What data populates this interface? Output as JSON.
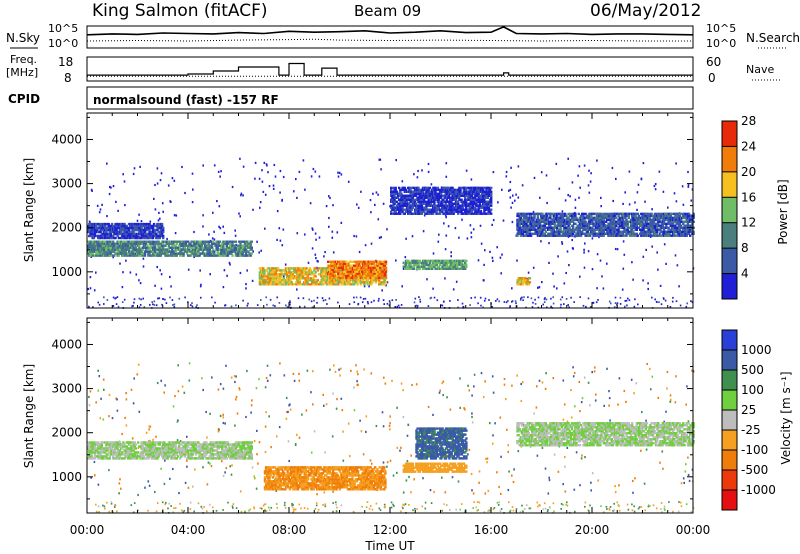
{
  "header": {
    "station": "King Salmon (fitACF)",
    "beam": "Beam 09",
    "date": "06/May/2012"
  },
  "chart_data": [
    {
      "type": "line",
      "panel": "noise",
      "left_label": "N.Sky",
      "right_label": "N.Search",
      "left_ticks": [
        "10^5",
        "10^0"
      ],
      "right_ticks": [
        "10^5",
        "10^0"
      ],
      "series": [
        {
          "name": "N.Sky",
          "x": [
            0,
            1,
            2,
            3,
            4,
            5,
            6,
            7,
            8,
            9,
            10,
            11,
            12,
            13,
            14,
            15,
            16,
            16.5,
            17,
            18,
            19,
            20,
            21,
            22,
            23,
            24
          ],
          "values": [
            3.0,
            3.2,
            3.1,
            3.4,
            3.3,
            3.2,
            3.5,
            3.3,
            3.8,
            3.6,
            3.7,
            3.9,
            3.4,
            3.6,
            3.9,
            3.5,
            3.6,
            4.8,
            3.3,
            3.2,
            3.3,
            3.1,
            3.2,
            3.2,
            3.1,
            3.0
          ]
        },
        {
          "name": "N.Search",
          "x": [
            0,
            2,
            4,
            6,
            8,
            9,
            10,
            12,
            14,
            16,
            18,
            20,
            22,
            24
          ],
          "values": [
            1.6,
            1.7,
            1.6,
            1.8,
            1.9,
            2.0,
            1.8,
            1.7,
            1.8,
            1.7,
            1.6,
            1.7,
            1.6,
            1.6
          ]
        }
      ]
    },
    {
      "type": "line",
      "panel": "frequency",
      "left_label": "Freq.",
      "left_unit": "[MHz]",
      "right_label": "Nave",
      "left_ticks": [
        18,
        8
      ],
      "right_ticks": [
        60,
        0
      ],
      "series": [
        {
          "name": "Freq.",
          "x": [
            0,
            1,
            2,
            3,
            4,
            5,
            6,
            7,
            7.6,
            8,
            8.6,
            9,
            9.3,
            9.9,
            10,
            12,
            14,
            16,
            16.5,
            16.7,
            18,
            20,
            22,
            24
          ],
          "values": [
            10.2,
            10.2,
            10.2,
            10.2,
            10.8,
            12.4,
            14.6,
            14.6,
            10.2,
            16.5,
            10.2,
            10.2,
            14.0,
            10.2,
            10.2,
            10.2,
            10.2,
            10.2,
            11.4,
            10.2,
            10.2,
            10.2,
            10.2,
            10.2
          ]
        },
        {
          "name": "Nave",
          "x": [
            0,
            6,
            12,
            18,
            24
          ],
          "values": [
            12,
            12,
            12,
            12,
            12
          ]
        }
      ]
    },
    {
      "type": "text",
      "panel": "cpid",
      "label": "CPID",
      "text": "normalsound (fast) -157 RF"
    },
    {
      "type": "heatmap",
      "panel": "power",
      "ylabel": "Slant Range [km]",
      "xlim": [
        0,
        24
      ],
      "ylim": [
        180,
        4600
      ],
      "yticks": [
        1000,
        2000,
        3000,
        4000
      ],
      "colorbar": {
        "label": "Power [dB]",
        "ticks": [
          4,
          8,
          12,
          16,
          20,
          24,
          28
        ],
        "colors": [
          "#1f1fd6",
          "#3a5aa8",
          "#4a7f7d",
          "#6fbd66",
          "#f5c020",
          "#f07d0a",
          "#e62a0a"
        ]
      },
      "features": [
        {
          "t0": 0.0,
          "t1": 6.5,
          "r0": 1350,
          "r1": 1700,
          "level": 12
        },
        {
          "t0": 0.0,
          "t1": 3.0,
          "r0": 1750,
          "r1": 2100,
          "level": 6
        },
        {
          "t0": 6.8,
          "t1": 11.8,
          "r0": 700,
          "r1": 1100,
          "level": 20
        },
        {
          "t0": 9.5,
          "t1": 11.8,
          "r0": 850,
          "r1": 1250,
          "level": 24
        },
        {
          "t0": 12.5,
          "t1": 15.0,
          "r0": 1050,
          "r1": 1250,
          "level": 14
        },
        {
          "t0": 12.0,
          "t1": 16.0,
          "r0": 2300,
          "r1": 2900,
          "level": 5
        },
        {
          "t0": 17.0,
          "t1": 17.5,
          "r0": 700,
          "r1": 850,
          "level": 20
        },
        {
          "t0": 17.0,
          "t1": 24.0,
          "r0": 1800,
          "r1": 2300,
          "level": 8
        }
      ]
    },
    {
      "type": "heatmap",
      "panel": "velocity",
      "xlabel": "Time UT",
      "ylabel": "Slant Range [km]",
      "xlim": [
        0,
        24
      ],
      "ylim": [
        180,
        4600
      ],
      "xticks": [
        "00:00",
        "04:00",
        "08:00",
        "12:00",
        "16:00",
        "20:00",
        "00:00"
      ],
      "yticks": [
        1000,
        2000,
        3000,
        4000
      ],
      "colorbar": {
        "label": "Velocity [m s⁻¹]",
        "ticks": [
          1000,
          500,
          100,
          25,
          -25,
          -100,
          -500,
          -1000
        ],
        "colors": [
          "#2a3fd8",
          "#3a5aa8",
          "#3f8f4f",
          "#6fcf3f",
          "#bdbdbd",
          "#f5a020",
          "#f07d0a",
          "#ee3a0a",
          "#e60f0f"
        ]
      },
      "features": [
        {
          "t0": 0.0,
          "t1": 6.5,
          "r0": 1400,
          "r1": 1800,
          "level": 0
        },
        {
          "t0": 7.0,
          "t1": 11.8,
          "r0": 700,
          "r1": 1200,
          "level": -300
        },
        {
          "t0": 12.5,
          "t1": 15.0,
          "r0": 1100,
          "r1": 1300,
          "level": -200
        },
        {
          "t0": 13.0,
          "t1": 15.0,
          "r0": 1400,
          "r1": 2100,
          "level": 400
        },
        {
          "t0": 17.0,
          "t1": 24.0,
          "r0": 1700,
          "r1": 2200,
          "level": 0
        }
      ]
    }
  ]
}
